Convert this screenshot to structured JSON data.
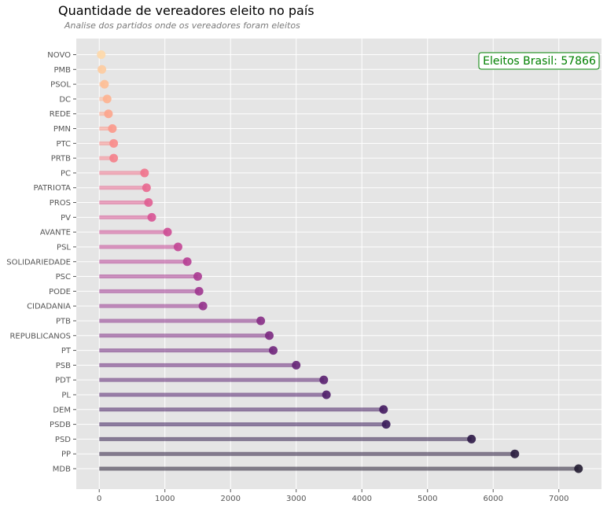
{
  "chart_data": {
    "type": "lollipop",
    "title": "Quantidade de vereadores eleito no país",
    "subtitle": "Analise dos partidos onde os vereadores foram eleitos",
    "xlabel": "",
    "ylabel": "",
    "xlim": [
      -350,
      7650
    ],
    "xticks": [
      0,
      1000,
      2000,
      3000,
      4000,
      5000,
      6000,
      7000
    ],
    "grid": true,
    "annotation": "Eleitos Brasil: 57866",
    "categories": [
      "MDB",
      "PP",
      "PSD",
      "PSDB",
      "DEM",
      "PL",
      "PDT",
      "PSB",
      "PT",
      "REPUBLICANOS",
      "PTB",
      "CIDADANIA",
      "PODE",
      "PSC",
      "SOLIDARIEDADE",
      "PSL",
      "AVANTE",
      "PV",
      "PROS",
      "PATRIOTA",
      "PC",
      "PRTB",
      "PTC",
      "PMN",
      "REDE",
      "DC",
      "PSOL",
      "PMB",
      "NOVO"
    ],
    "values": [
      7300,
      6330,
      5670,
      4370,
      4330,
      3460,
      3420,
      3000,
      2650,
      2590,
      2460,
      1580,
      1520,
      1500,
      1340,
      1200,
      1040,
      800,
      750,
      720,
      690,
      220,
      220,
      200,
      140,
      120,
      80,
      40,
      30
    ],
    "colors": [
      "#221c31",
      "#281a3d",
      "#2e1a47",
      "#391a59",
      "#441b61",
      "#4f1d69",
      "#5a2070",
      "#652377",
      "#70267c",
      "#7b2981",
      "#872d86",
      "#93318b",
      "#9f358f",
      "#aa3a91",
      "#b63e93",
      "#c24494",
      "#cd4b94",
      "#d75393",
      "#e05d91",
      "#e8678f",
      "#ef738c",
      "#f47f8a",
      "#f88b89",
      "#fb9889",
      "#fca48b",
      "#fdb18f",
      "#fdbe95",
      "#fdcb9e",
      "#fed8a8"
    ],
    "colors_note": "dark purple (MDB) to light cream (NOVO)"
  }
}
